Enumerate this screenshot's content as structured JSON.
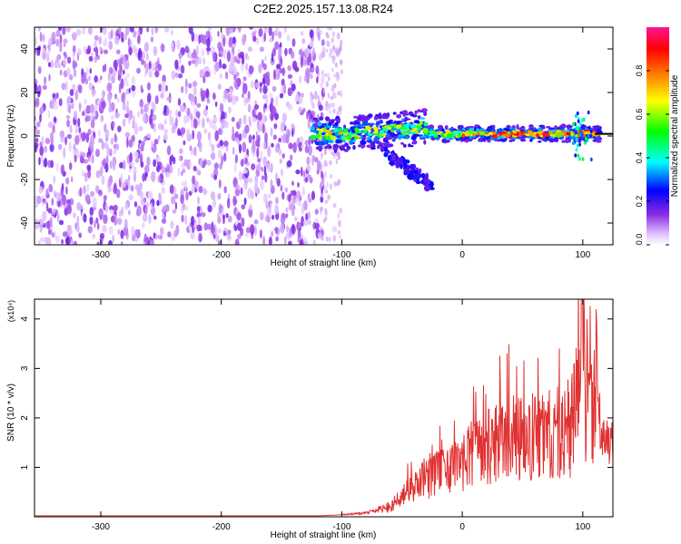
{
  "title": "C2E2.2025.157.13.08.R24",
  "chart_data": [
    {
      "type": "heatmap",
      "xlabel": "Height of straight line (km)",
      "ylabel": "Frequency (Hz)",
      "xlim": [
        -355,
        125
      ],
      "ylim": [
        -50,
        50
      ],
      "x_ticks": [
        -300,
        -200,
        -100,
        0,
        100
      ],
      "y_ticks": [
        -40,
        -20,
        0,
        20,
        40
      ],
      "colorbar": {
        "label": "Normalized spectral amplitude",
        "range": [
          0,
          1
        ],
        "ticks": [
          0.0,
          0.2,
          0.4,
          0.6,
          0.8
        ],
        "tick_labels": [
          "0.0",
          "0.2",
          "0.4",
          "0.6",
          "0.8"
        ],
        "colors": [
          "#ffffff",
          "#e0c0ff",
          "#8a2be2",
          "#0000ff",
          "#00ffff",
          "#00ff00",
          "#ffff00",
          "#ff8000",
          "#ff0000",
          "#ff1493"
        ]
      },
      "regions": [
        {
          "name": "noise",
          "x_range": [
            -355,
            -115
          ],
          "freq_range": [
            -50,
            50
          ],
          "amplitude": 0.08
        },
        {
          "name": "signal",
          "x_range": [
            -125,
            115
          ],
          "center_freq": 1,
          "amplitude": 0.6
        },
        {
          "name": "drift",
          "x_range": [
            -70,
            -25
          ],
          "freq_range": [
            -5,
            -23
          ],
          "amplitude": 0.2
        }
      ],
      "signal_line": {
        "frequency": 1,
        "x_range": [
          110,
          125
        ],
        "color": "#000000"
      }
    },
    {
      "type": "line",
      "xlabel": "Height of straight line (km)",
      "ylabel": "SNR (10 * v/v)",
      "y_multiplier": "(x10⁴)",
      "xlim": [
        -355,
        125
      ],
      "ylim": [
        0,
        4.4
      ],
      "x_ticks": [
        -300,
        -200,
        -100,
        0,
        100
      ],
      "y_ticks": [
        1,
        2,
        3,
        4
      ],
      "color": "#e03030",
      "series": [
        {
          "x": [
            -355,
            -200,
            -120,
            -100,
            -80,
            -60,
            -50,
            -40,
            -30,
            -20,
            -10,
            0,
            10,
            20,
            30,
            40,
            50,
            60,
            70,
            80,
            90,
            95,
            98,
            100,
            103,
            105,
            108,
            112,
            115,
            125
          ],
          "y": [
            0.02,
            0.02,
            0.02,
            0.04,
            0.08,
            0.2,
            0.4,
            0.6,
            0.8,
            0.9,
            1.0,
            1.1,
            1.3,
            1.4,
            1.5,
            1.6,
            1.6,
            1.6,
            1.65,
            1.7,
            1.75,
            2.5,
            3.2,
            4.3,
            2.0,
            3.5,
            1.8,
            3.0,
            1.55,
            1.5
          ]
        }
      ]
    }
  ]
}
